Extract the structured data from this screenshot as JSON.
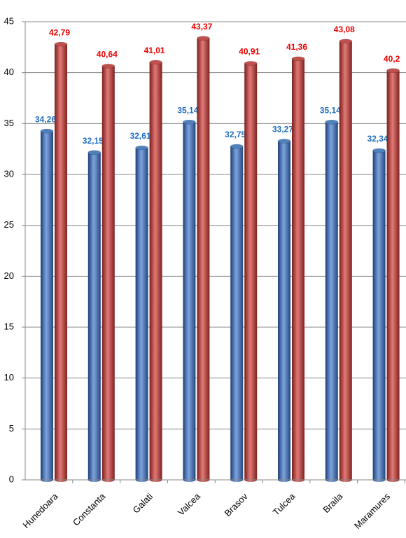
{
  "chart_data": {
    "type": "bar",
    "categories": [
      "Hunedoara",
      "Constanta",
      "Galati",
      "Valcea",
      "Brasov",
      "Tulcea",
      "Braila",
      "Maramures"
    ],
    "series": [
      {
        "color": "#4f81bd",
        "label_color": "#1f6fc0",
        "values": [
          34.26,
          32.15,
          32.61,
          35.14,
          32.75,
          33.27,
          35.14,
          32.34
        ],
        "value_labels": [
          "34,26",
          "32,15",
          "32,61",
          "35,14",
          "32,75",
          "33,27",
          "35,14",
          "32,34"
        ]
      },
      {
        "color": "#c0504d",
        "label_color": "#ee0000",
        "values": [
          42.79,
          40.64,
          41.01,
          43.37,
          40.91,
          41.36,
          43.08,
          40.2
        ],
        "value_labels": [
          "42,79",
          "40,64",
          "41,01",
          "43,37",
          "40,91",
          "41,36",
          "43,08",
          "40,2"
        ]
      }
    ],
    "ylim": [
      0,
      45
    ],
    "yticks": [
      0,
      5,
      10,
      15,
      20,
      25,
      30,
      35,
      40,
      45
    ],
    "grid": true
  }
}
